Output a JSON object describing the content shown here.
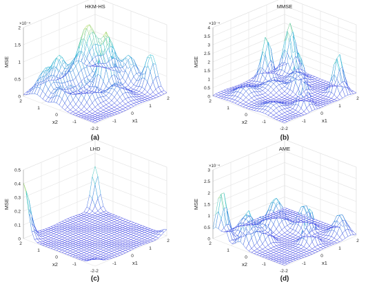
{
  "chart_data": [
    {
      "type": "surface",
      "panel": "(a)",
      "title": "HKM-HS",
      "xlabel": "x1",
      "ylabel": "x2",
      "zlabel": "MSE",
      "z_exponent": "×10⁻⁴",
      "xlim": [
        -2,
        2
      ],
      "ylim": [
        -2,
        2
      ],
      "zlim": [
        0,
        2
      ],
      "xticks": [
        "-2",
        "-1",
        "0",
        "1",
        "2"
      ],
      "yticks": [
        "-2",
        "-1",
        "0",
        "1",
        "2"
      ],
      "zticks": [
        "0",
        "0.5",
        "1",
        "1.5",
        "2"
      ],
      "peaks": [
        {
          "x": -1.4,
          "y": 1.3,
          "z": 0.8,
          "w": 0.35
        },
        {
          "x": -0.6,
          "y": 1.4,
          "z": 0.9,
          "w": 0.3
        },
        {
          "x": 0.2,
          "y": 1.2,
          "z": 0.7,
          "w": 0.3
        },
        {
          "x": 1.0,
          "y": 1.4,
          "z": 1.5,
          "w": 0.35
        },
        {
          "x": 1.3,
          "y": 0.6,
          "z": 1.2,
          "w": 0.3
        },
        {
          "x": 0.7,
          "y": 0.1,
          "z": 1.6,
          "w": 0.25
        },
        {
          "x": 1.7,
          "y": -0.2,
          "z": 0.8,
          "w": 0.3
        },
        {
          "x": 1.9,
          "y": -1.2,
          "z": 1.0,
          "w": 0.25
        },
        {
          "x": -0.8,
          "y": -0.4,
          "z": 0.7,
          "w": 0.35
        },
        {
          "x": 0.3,
          "y": -1.0,
          "z": 0.5,
          "w": 0.35
        },
        {
          "x": -1.5,
          "y": 0.2,
          "z": 0.6,
          "w": 0.3
        }
      ]
    },
    {
      "type": "surface",
      "panel": "(b)",
      "title": "MMSE",
      "xlabel": "x1",
      "ylabel": "x2",
      "zlabel": "MSE",
      "z_exponent": "×10⁻⁴",
      "xlim": [
        -2,
        2
      ],
      "ylim": [
        -2,
        2
      ],
      "zlim": [
        0,
        4
      ],
      "xticks": [
        "-2",
        "-1",
        "0",
        "1",
        "2"
      ],
      "yticks": [
        "-2",
        "-1",
        "0",
        "1",
        "2"
      ],
      "zticks": [
        "0",
        "0.5",
        "1",
        "1.5",
        "2",
        "2.5",
        "3",
        "3.5",
        "4"
      ],
      "peaks": [
        {
          "x": 0.5,
          "y": 1.5,
          "z": 2.6,
          "w": 0.2
        },
        {
          "x": 1.7,
          "y": 1.4,
          "z": 2.8,
          "w": 0.22
        },
        {
          "x": 0.6,
          "y": -0.2,
          "z": 2.2,
          "w": 0.2
        },
        {
          "x": 1.5,
          "y": -1.5,
          "z": 2.3,
          "w": 0.2
        },
        {
          "x": -0.4,
          "y": -1.5,
          "z": 1.6,
          "w": 0.2
        },
        {
          "x": -1.2,
          "y": 1.0,
          "z": 0.7,
          "w": 0.35
        },
        {
          "x": 0.0,
          "y": 0.6,
          "z": 0.6,
          "w": 0.35
        },
        {
          "x": -1.4,
          "y": -0.8,
          "z": 0.5,
          "w": 0.35
        },
        {
          "x": 1.2,
          "y": 0.5,
          "z": 0.6,
          "w": 0.3
        }
      ]
    },
    {
      "type": "surface",
      "panel": "(c)",
      "title": "LHD",
      "xlabel": "x1",
      "ylabel": "x2",
      "zlabel": "MSE",
      "z_exponent": "",
      "xlim": [
        -2,
        2
      ],
      "ylim": [
        -2,
        2
      ],
      "zlim": [
        0,
        0.5
      ],
      "xticks": [
        "-2",
        "-1",
        "0",
        "1",
        "2"
      ],
      "yticks": [
        "-2",
        "-1",
        "0",
        "1",
        "2"
      ],
      "zticks": [
        "0",
        "0.1",
        "0.2",
        "0.3",
        "0.4",
        "0.5"
      ],
      "peaks": [
        {
          "x": -2.0,
          "y": 2.0,
          "z": 0.4,
          "w": 0.25
        },
        {
          "x": 2.0,
          "y": 2.0,
          "z": 0.3,
          "w": 0.22
        },
        {
          "x": -2.0,
          "y": -2.0,
          "z": 0.05,
          "w": 0.25
        },
        {
          "x": 2.0,
          "y": -2.0,
          "z": 0.04,
          "w": 0.25
        }
      ]
    },
    {
      "type": "surface",
      "panel": "(d)",
      "title": "AME",
      "xlabel": "x1",
      "ylabel": "x2",
      "zlabel": "MSE",
      "z_exponent": "×10⁻⁴",
      "xlim": [
        -2,
        2
      ],
      "ylim": [
        -2,
        2
      ],
      "zlim": [
        0,
        3
      ],
      "xticks": [
        "-2",
        "-1",
        "0",
        "1",
        "2"
      ],
      "yticks": [
        "-2",
        "-1",
        "0",
        "1",
        "2"
      ],
      "zticks": [
        "0",
        "0.5",
        "1",
        "1.5",
        "2",
        "2.5",
        "3"
      ],
      "peaks": [
        {
          "x": -1.9,
          "y": 1.6,
          "z": 2.2,
          "w": 0.22
        },
        {
          "x": -1.6,
          "y": 0.5,
          "z": 1.5,
          "w": 0.22
        },
        {
          "x": -1.0,
          "y": 0.2,
          "z": 1.2,
          "w": 0.25
        },
        {
          "x": 0.4,
          "y": 0.9,
          "z": 1.3,
          "w": 0.3
        },
        {
          "x": 1.0,
          "y": -0.1,
          "z": 1.1,
          "w": 0.25
        },
        {
          "x": 0.2,
          "y": -1.2,
          "z": 1.6,
          "w": 0.2
        },
        {
          "x": 1.6,
          "y": -1.5,
          "z": 0.9,
          "w": 0.25
        },
        {
          "x": -0.8,
          "y": 1.3,
          "z": 0.8,
          "w": 0.3
        }
      ]
    }
  ]
}
